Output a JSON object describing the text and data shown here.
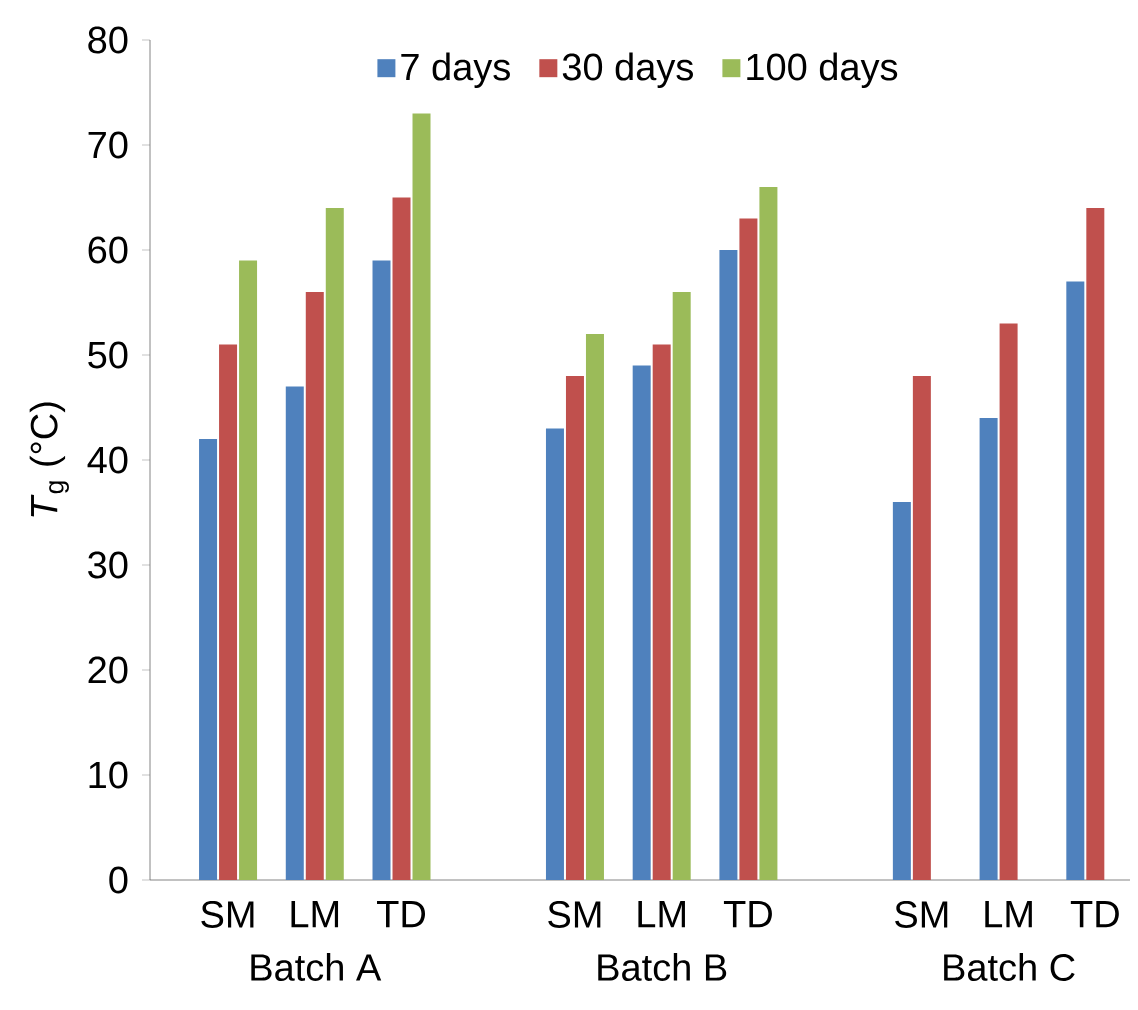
{
  "chart_data": {
    "type": "bar",
    "ylabel": "*T*$_{g}$ (°C)",
    "categories": [
      "SM",
      "LM",
      "TD",
      null,
      "SM",
      "LM",
      "TD",
      null,
      "SM",
      "LM",
      "TD"
    ],
    "series": [
      {
        "name": "7 days",
        "color": "#4f81bd",
        "values": [
          42,
          47,
          59,
          null,
          43,
          49,
          60,
          null,
          36,
          44,
          57
        ]
      },
      {
        "name": "30 days",
        "color": "#c0504d",
        "values": [
          51,
          56,
          65,
          null,
          48,
          51,
          63,
          null,
          48,
          53,
          64
        ]
      },
      {
        "name": "100 days",
        "color": "#9bbb59",
        "values": [
          59,
          64,
          73,
          null,
          52,
          56,
          66,
          null,
          null,
          null,
          null
        ]
      }
    ],
    "ylim": [
      0,
      80
    ],
    "yticks": [
      0,
      10,
      20,
      30,
      40,
      50,
      60,
      70,
      80
    ],
    "grid": false,
    "legend": "top",
    "annotations": [
      "Batch A",
      "Batch B",
      "Batch C"
    ]
  }
}
